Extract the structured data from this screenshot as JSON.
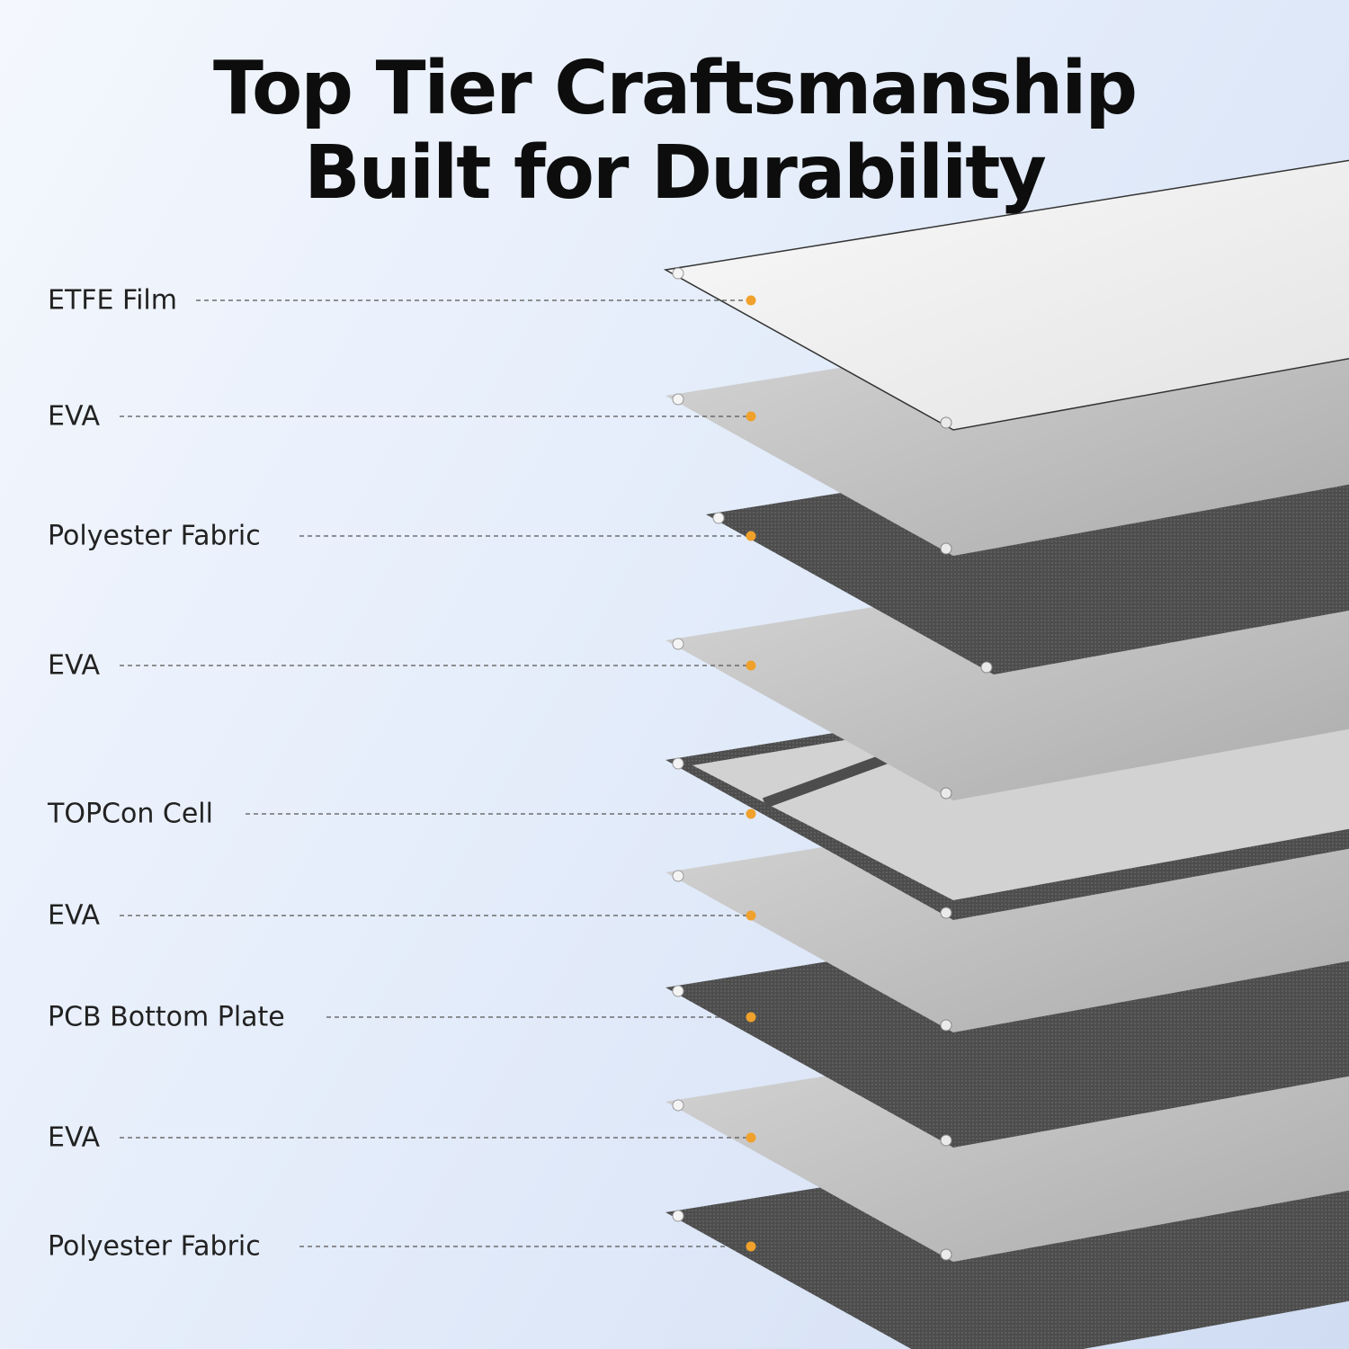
{
  "title": {
    "line1": "Top Tier Craftsmanship",
    "line2": "Built for Durability"
  },
  "accent_color": "#f0a12b",
  "layers": [
    {
      "label": "ETFE Film"
    },
    {
      "label": "EVA"
    },
    {
      "label": "Polyester Fabric"
    },
    {
      "label": "EVA"
    },
    {
      "label": "TOPCon Cell"
    },
    {
      "label": "EVA"
    },
    {
      "label": "PCB Bottom Plate"
    },
    {
      "label": "EVA"
    },
    {
      "label": "Polyester Fabric"
    }
  ]
}
